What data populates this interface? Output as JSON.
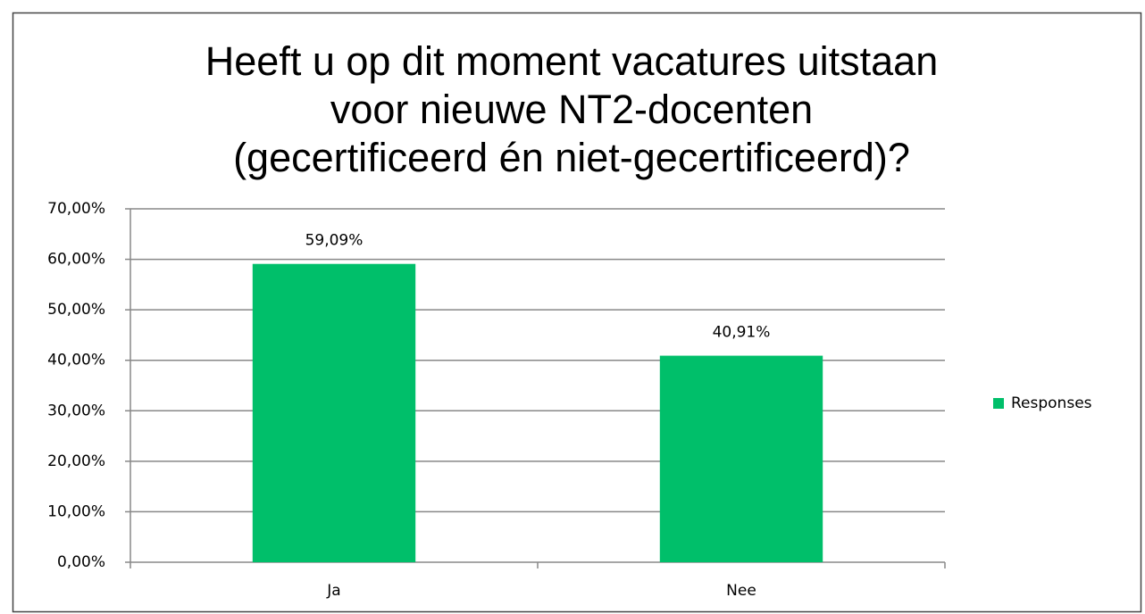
{
  "chart_data": {
    "type": "bar",
    "title": [
      "Heeft u op dit moment vacatures uitstaan",
      "voor nieuwe NT2-docenten",
      "(gecertificeerd én niet-gecertificeerd)?"
    ],
    "categories": [
      "Ja",
      "Nee"
    ],
    "series": [
      {
        "name": "Responses",
        "color": "#00bf6a",
        "values": [
          59.09,
          40.91
        ],
        "value_labels": [
          "59,09%",
          "40,91%"
        ]
      }
    ],
    "ylim": [
      0,
      70
    ],
    "yticks": [
      {
        "value": 0,
        "label": "0,00%"
      },
      {
        "value": 10,
        "label": "10,00%"
      },
      {
        "value": 20,
        "label": "20,00%"
      },
      {
        "value": 30,
        "label": "30,00%"
      },
      {
        "value": 40,
        "label": "40,00%"
      },
      {
        "value": 50,
        "label": "50,00%"
      },
      {
        "value": 60,
        "label": "60,00%"
      },
      {
        "value": 70,
        "label": "70,00%"
      }
    ],
    "grid": true,
    "legend": "right"
  }
}
